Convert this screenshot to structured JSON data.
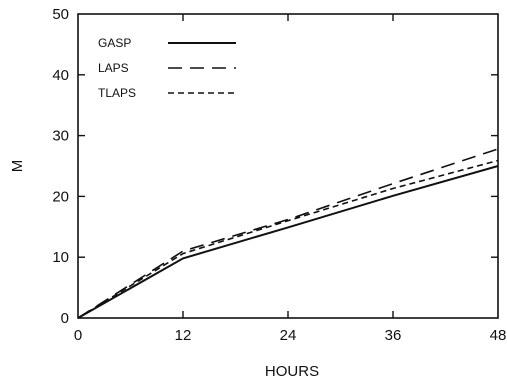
{
  "chart_data": {
    "type": "line",
    "title": "",
    "xlabel": "HOURS",
    "ylabel": "M",
    "xlim": [
      0,
      48
    ],
    "ylim": [
      0,
      50
    ],
    "x_ticks": [
      0,
      12,
      24,
      36,
      48
    ],
    "y_ticks": [
      0,
      10,
      20,
      30,
      40,
      50
    ],
    "grid": false,
    "legend_position": "top-left",
    "series": [
      {
        "name": "GASP",
        "dash": "solid",
        "x": [
          0,
          12,
          24,
          36,
          48
        ],
        "y": [
          0,
          9.8,
          14.9,
          20.1,
          25.0
        ]
      },
      {
        "name": "LAPS",
        "dash": "long-dash",
        "x": [
          0,
          12,
          24,
          36,
          48
        ],
        "y": [
          0,
          11.0,
          16.2,
          22.1,
          27.8
        ]
      },
      {
        "name": "TLAPS",
        "dash": "short-dash",
        "x": [
          0,
          12,
          24,
          36,
          48
        ],
        "y": [
          0,
          10.6,
          16.0,
          21.3,
          25.9
        ]
      }
    ]
  }
}
